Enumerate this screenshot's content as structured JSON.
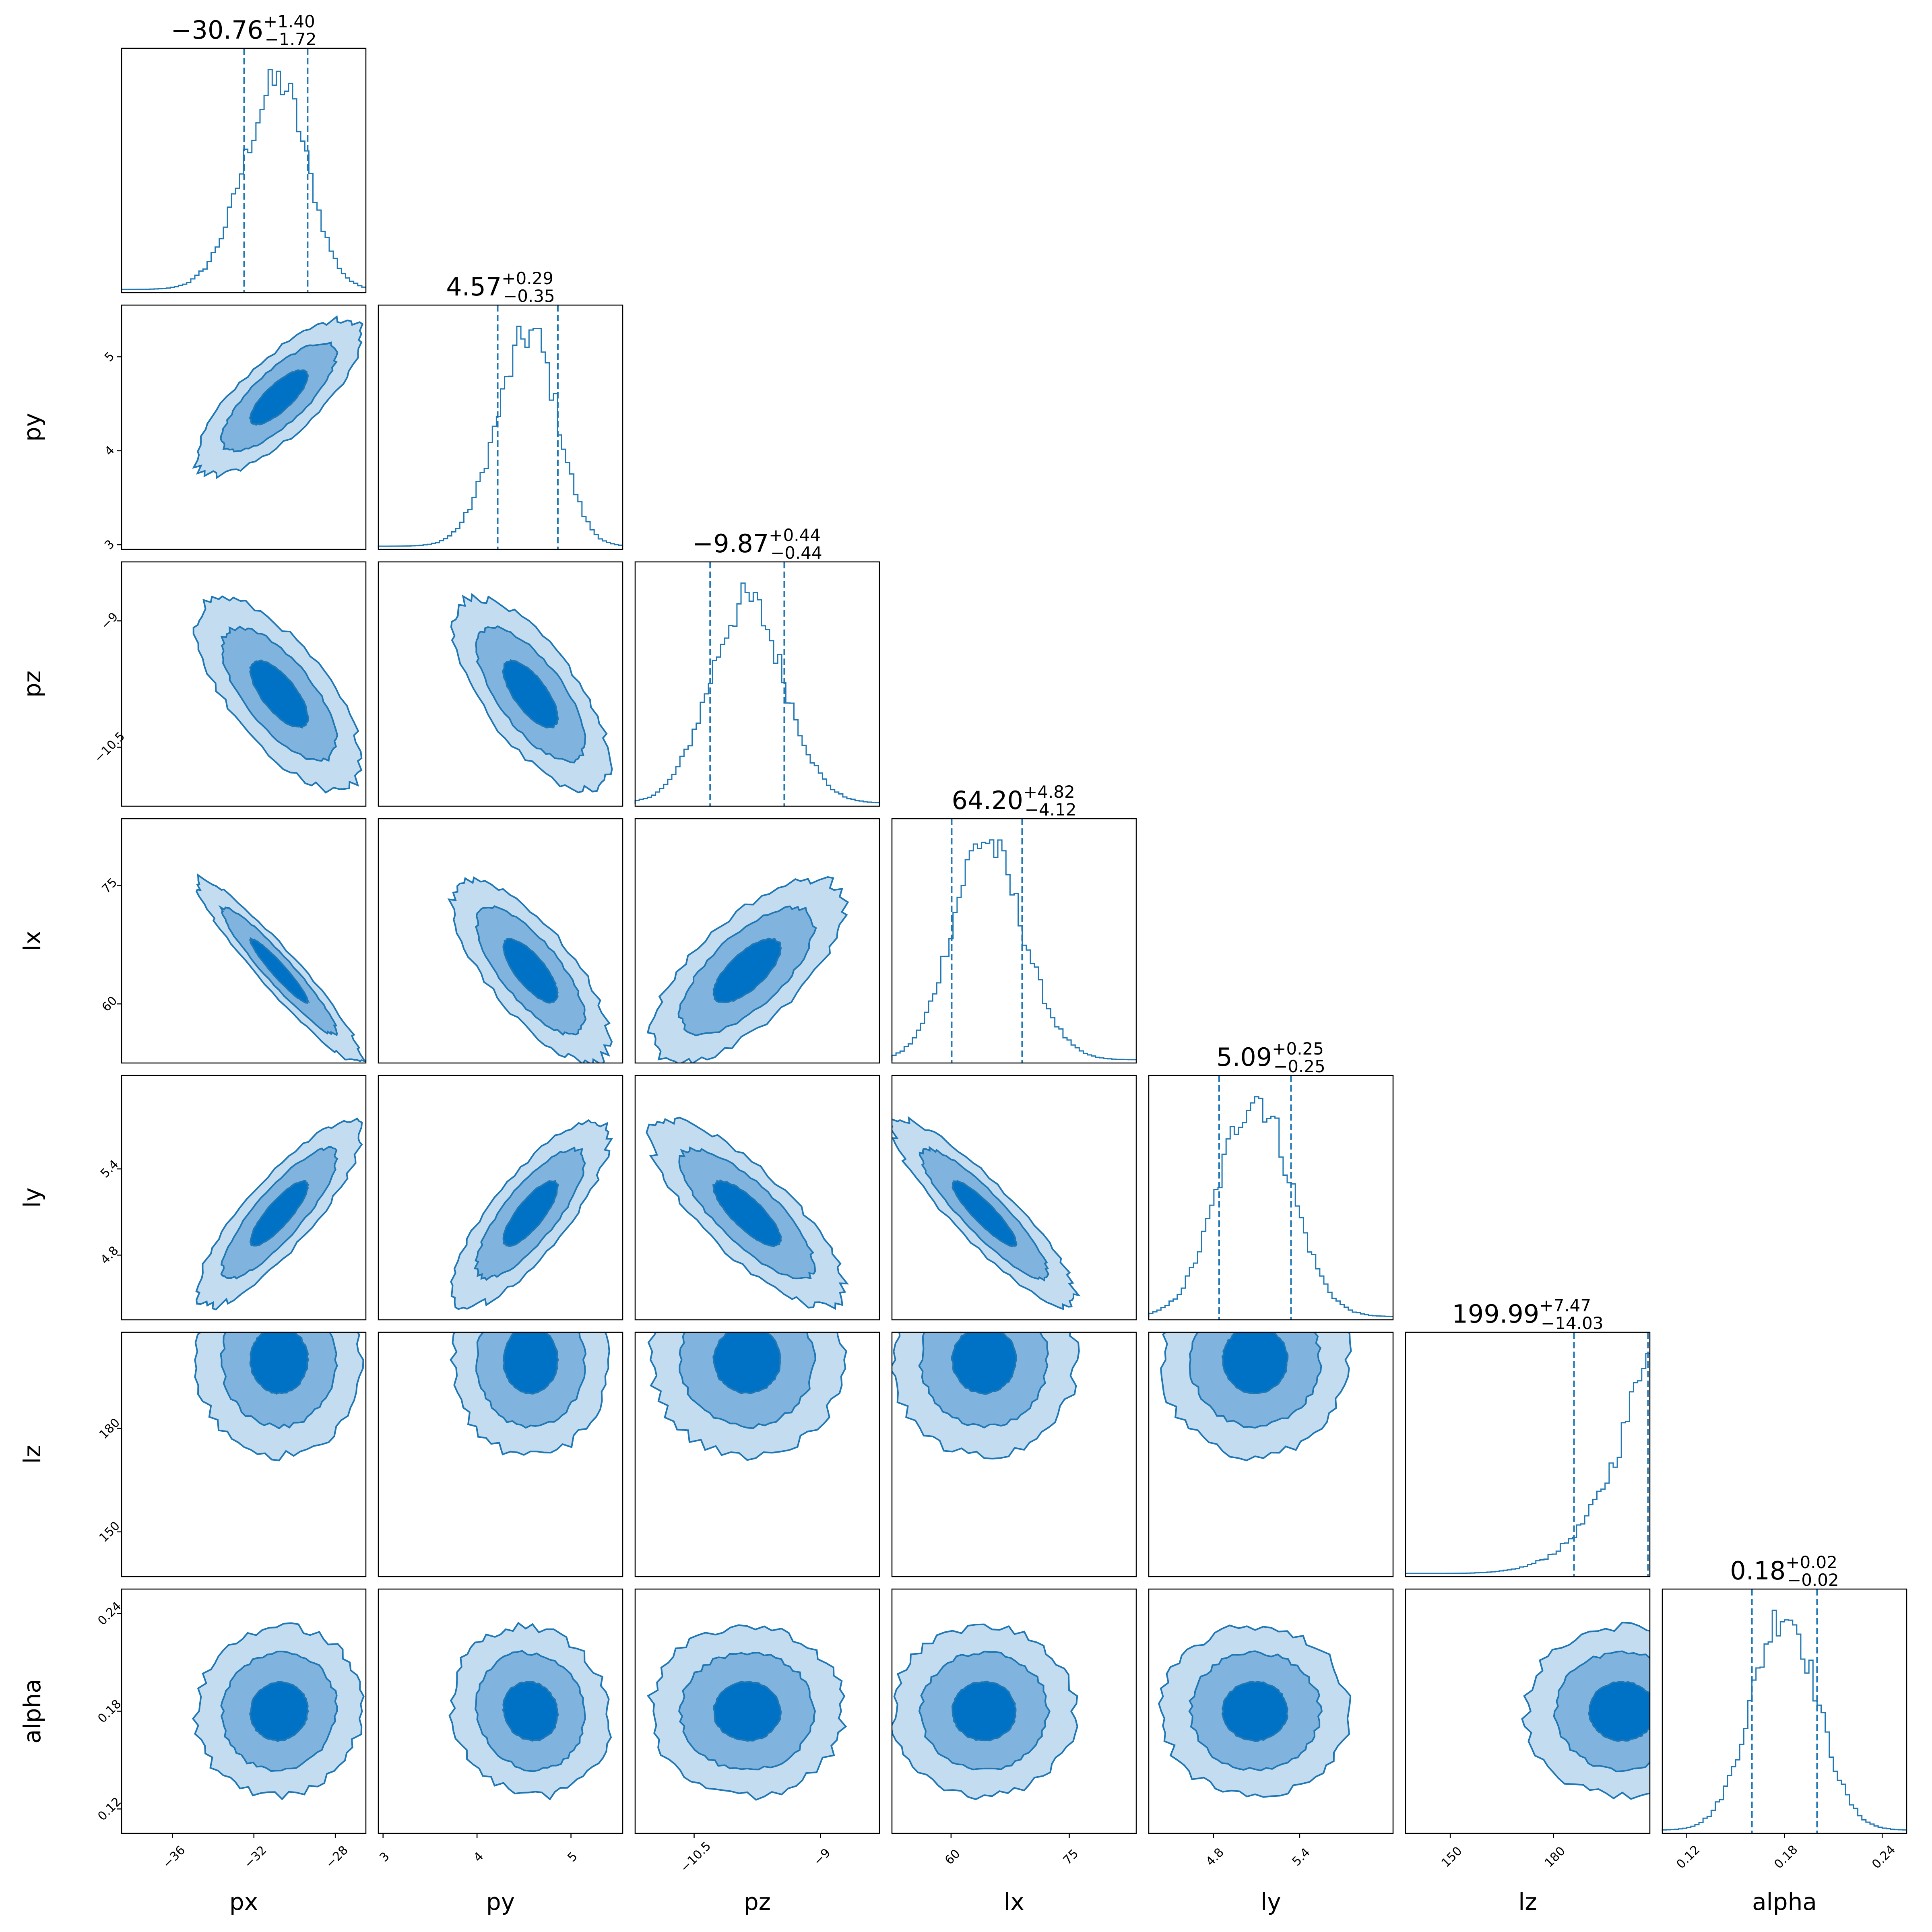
{
  "chart_data": {
    "type": "corner",
    "colors": {
      "line": "#1f77b4",
      "fill_outer": "#c3dcf0",
      "fill_mid": "#80b4de",
      "fill_inner": "#0072c5"
    },
    "parameters": [
      {
        "name": "px",
        "label": "px",
        "range": [
          -38.5,
          -26.5
        ],
        "ticks": [
          -36,
          -32,
          -28
        ],
        "median": -30.76,
        "plus": 1.4,
        "minus": 1.72,
        "title": "−30.76",
        "title_plus": "+1.40",
        "title_minus": "−1.72",
        "hist_shape": "skew-left"
      },
      {
        "name": "py",
        "label": "py",
        "range": [
          2.95,
          5.55
        ],
        "ticks": [
          3,
          4,
          5
        ],
        "median": 4.57,
        "plus": 0.29,
        "minus": 0.35,
        "title": "4.57",
        "title_plus": "+0.29",
        "title_minus": "−0.35",
        "hist_shape": "skew-left"
      },
      {
        "name": "pz",
        "label": "pz",
        "range": [
          -11.2,
          -8.3
        ],
        "ticks": [
          -10.5,
          -9.0
        ],
        "median": -9.87,
        "plus": 0.44,
        "minus": 0.44,
        "title": "−9.87",
        "title_plus": "+0.44",
        "title_minus": "−0.44",
        "hist_shape": "normal"
      },
      {
        "name": "lx",
        "label": "lx",
        "range": [
          52.5,
          83.5
        ],
        "ticks": [
          60,
          75
        ],
        "median": 64.2,
        "plus": 4.82,
        "minus": 4.12,
        "title": "64.20",
        "title_plus": "+4.82",
        "title_minus": "−4.12",
        "hist_shape": "skew-right"
      },
      {
        "name": "ly",
        "label": "ly",
        "range": [
          4.35,
          6.05
        ],
        "ticks": [
          4.8,
          5.4
        ],
        "median": 5.09,
        "plus": 0.25,
        "minus": 0.25,
        "title": "5.09",
        "title_plus": "+0.25",
        "title_minus": "−0.25",
        "hist_shape": "normal"
      },
      {
        "name": "lz",
        "label": "lz",
        "range": [
          137,
          208
        ],
        "ticks": [
          150,
          180
        ],
        "median": 199.99,
        "plus": 7.47,
        "minus": 14.03,
        "title": "199.99",
        "title_plus": "+7.47",
        "title_minus": "−14.03",
        "hist_shape": "rising"
      },
      {
        "name": "alpha",
        "label": "alpha",
        "range": [
          0.105,
          0.255
        ],
        "ticks": [
          0.12,
          0.18,
          0.24
        ],
        "median": 0.18,
        "plus": 0.02,
        "minus": 0.02,
        "title": "0.18",
        "title_plus": "+0.02",
        "title_minus": "−0.02",
        "hist_shape": "normal"
      }
    ],
    "correlations": [
      [
        1.0,
        0.78,
        -0.7,
        -0.95,
        0.85,
        0.0,
        0.05
      ],
      [
        0.78,
        1.0,
        -0.7,
        -0.75,
        0.8,
        0.0,
        -0.1
      ],
      [
        -0.7,
        -0.7,
        1.0,
        0.7,
        -0.8,
        0.0,
        0.0
      ],
      [
        -0.95,
        -0.75,
        0.7,
        1.0,
        -0.9,
        0.0,
        0.0
      ],
      [
        0.85,
        0.8,
        -0.8,
        -0.9,
        1.0,
        0.0,
        0.0
      ],
      [
        0.0,
        0.0,
        0.0,
        0.0,
        0.0,
        1.0,
        0.0
      ],
      [
        0.05,
        -0.1,
        0.0,
        0.0,
        0.0,
        0.0,
        1.0
      ]
    ],
    "contour_levels": [
      "1-sigma",
      "2-sigma",
      "3-sigma"
    ],
    "grid": false,
    "legend": "none"
  }
}
